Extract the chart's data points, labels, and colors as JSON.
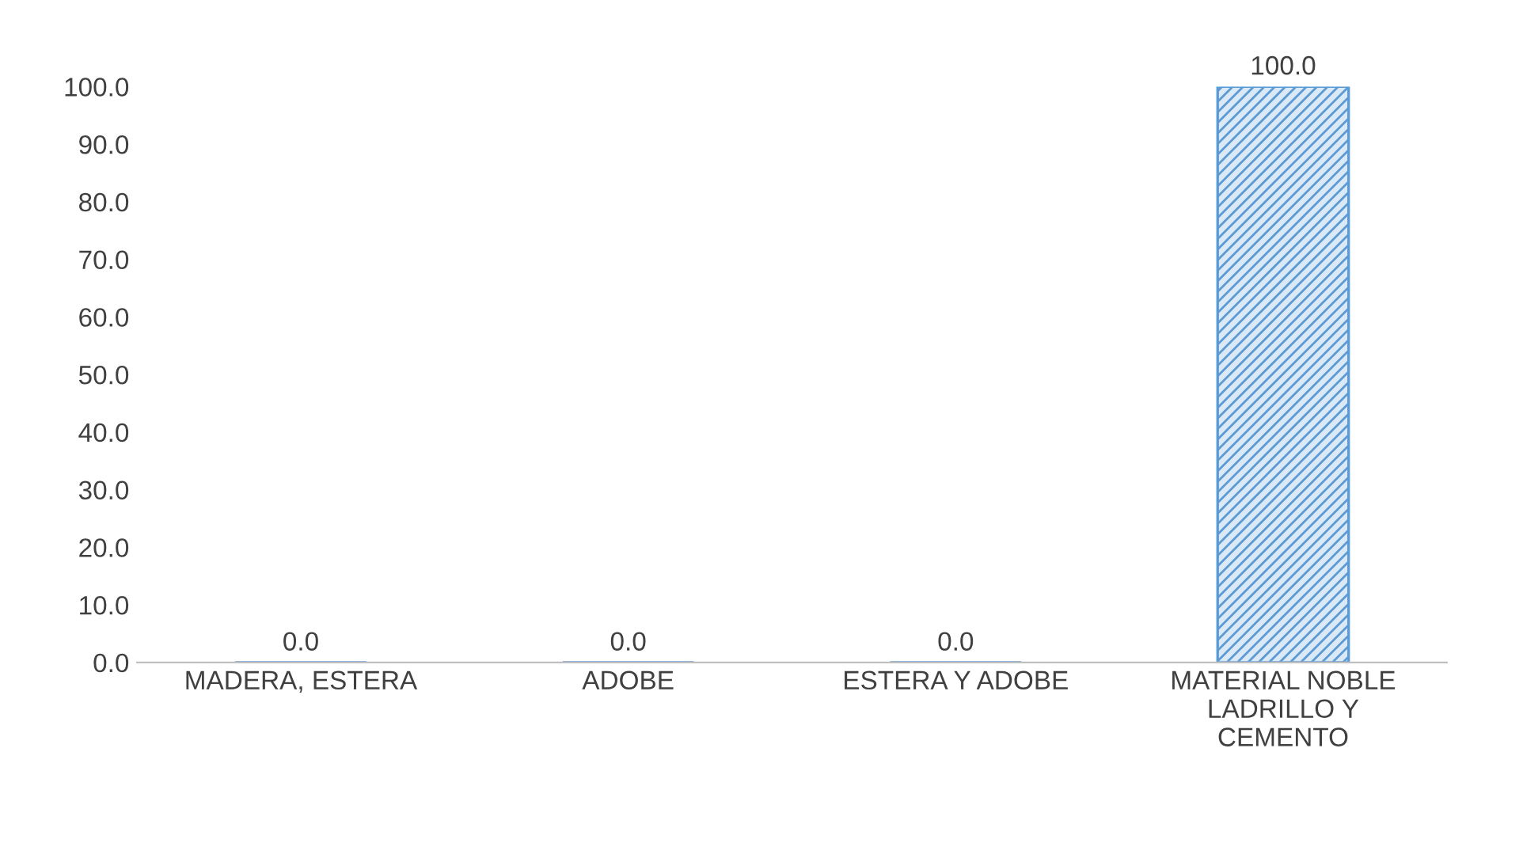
{
  "chart_data": {
    "type": "bar",
    "categories": [
      "MADERA, ESTERA",
      "ADOBE",
      "ESTERA Y ADOBE",
      "MATERIAL NOBLE\nLADRILLO Y\nCEMENTO"
    ],
    "values": [
      0,
      0,
      0,
      100
    ],
    "value_labels": [
      "0.0",
      "0.0",
      "0.0",
      "100.0"
    ],
    "color": "#5b9bd5",
    "ylim": [
      0,
      100
    ],
    "yticks": [
      {
        "value": 0,
        "label": "0.0"
      },
      {
        "value": 10,
        "label": "10.0"
      },
      {
        "value": 20,
        "label": "20.0"
      },
      {
        "value": 30,
        "label": "30.0"
      },
      {
        "value": 40,
        "label": "40.0"
      },
      {
        "value": 50,
        "label": "50.0"
      },
      {
        "value": 60,
        "label": "60.0"
      },
      {
        "value": 70,
        "label": "70.0"
      },
      {
        "value": 80,
        "label": "80.0"
      },
      {
        "value": 90,
        "label": "90.0"
      },
      {
        "value": 100,
        "label": "100.0"
      }
    ],
    "grid": false
  }
}
